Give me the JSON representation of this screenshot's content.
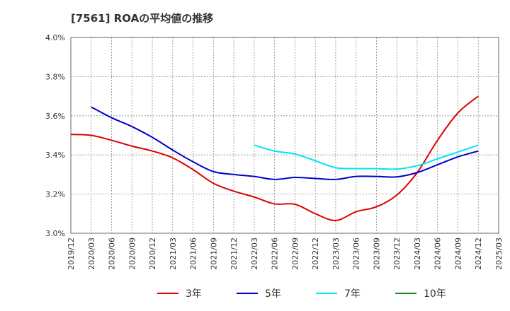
{
  "chart_data": {
    "type": "line",
    "title": "[7561]  ROAの平均値の推移",
    "xlabel": "",
    "ylabel": "",
    "ylim": [
      3.0,
      4.0
    ],
    "y_ticks": [
      "3.0%",
      "3.2%",
      "3.4%",
      "3.6%",
      "3.8%",
      "4.0%"
    ],
    "x_ticks": [
      "2019/12",
      "2020/03",
      "2020/06",
      "2020/09",
      "2020/12",
      "2021/03",
      "2021/06",
      "2021/09",
      "2021/12",
      "2022/03",
      "2022/06",
      "2022/09",
      "2022/12",
      "2023/03",
      "2023/06",
      "2023/09",
      "2023/12",
      "2024/03",
      "2024/06",
      "2024/09",
      "2024/12",
      "2025/03"
    ],
    "grid": true,
    "legend_position": "bottom",
    "series": [
      {
        "name": "3年",
        "color": "#dd0000",
        "points": [
          [
            "2019/12",
            3.505
          ],
          [
            "2020/03",
            3.5
          ],
          [
            "2020/06",
            3.475
          ],
          [
            "2020/09",
            3.445
          ],
          [
            "2020/12",
            3.42
          ],
          [
            "2021/03",
            3.385
          ],
          [
            "2021/06",
            3.325
          ],
          [
            "2021/09",
            3.255
          ],
          [
            "2021/12",
            3.215
          ],
          [
            "2022/03",
            3.185
          ],
          [
            "2022/06",
            3.15
          ],
          [
            "2022/09",
            3.148
          ],
          [
            "2022/12",
            3.1
          ],
          [
            "2023/03",
            3.065
          ],
          [
            "2023/06",
            3.11
          ],
          [
            "2023/09",
            3.135
          ],
          [
            "2023/12",
            3.195
          ],
          [
            "2024/03",
            3.31
          ],
          [
            "2024/06",
            3.475
          ],
          [
            "2024/09",
            3.615
          ],
          [
            "2024/12",
            3.7
          ]
        ]
      },
      {
        "name": "5年",
        "color": "#0000cc",
        "points": [
          [
            "2020/03",
            3.645
          ],
          [
            "2020/06",
            3.59
          ],
          [
            "2020/09",
            3.545
          ],
          [
            "2020/12",
            3.49
          ],
          [
            "2021/03",
            3.425
          ],
          [
            "2021/06",
            3.365
          ],
          [
            "2021/09",
            3.315
          ],
          [
            "2021/12",
            3.3
          ],
          [
            "2022/03",
            3.29
          ],
          [
            "2022/06",
            3.275
          ],
          [
            "2022/09",
            3.285
          ],
          [
            "2022/12",
            3.28
          ],
          [
            "2023/03",
            3.275
          ],
          [
            "2023/06",
            3.29
          ],
          [
            "2023/09",
            3.29
          ],
          [
            "2023/12",
            3.288
          ],
          [
            "2024/03",
            3.31
          ],
          [
            "2024/06",
            3.35
          ],
          [
            "2024/09",
            3.39
          ],
          [
            "2024/12",
            3.42
          ]
        ]
      },
      {
        "name": "7年",
        "color": "#00e5ee",
        "points": [
          [
            "2022/03",
            3.45
          ],
          [
            "2022/06",
            3.42
          ],
          [
            "2022/09",
            3.405
          ],
          [
            "2022/12",
            3.37
          ],
          [
            "2023/03",
            3.335
          ],
          [
            "2023/06",
            3.33
          ],
          [
            "2023/09",
            3.33
          ],
          [
            "2023/12",
            3.328
          ],
          [
            "2024/03",
            3.345
          ],
          [
            "2024/06",
            3.38
          ],
          [
            "2024/09",
            3.415
          ],
          [
            "2024/12",
            3.45
          ]
        ]
      },
      {
        "name": "10年",
        "color": "#228b22",
        "points": []
      }
    ]
  }
}
